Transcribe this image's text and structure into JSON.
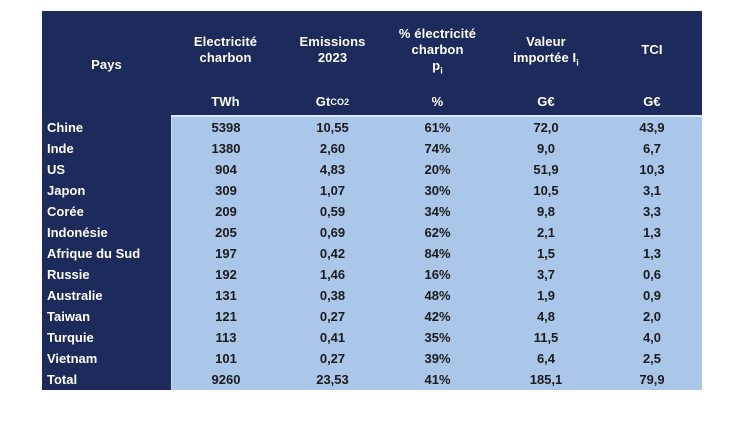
{
  "chart_data": {
    "type": "table",
    "columns": [
      {
        "id": "pays",
        "label": "Pays",
        "unit": ""
      },
      {
        "id": "electricite-charbon",
        "label": "Electricité\ncharbon",
        "unit": "TWh"
      },
      {
        "id": "emissions-2023",
        "label": "Emissions\n2023",
        "unit": "Gt~CO2~"
      },
      {
        "id": "pct-electricite-charbon",
        "label": "% électricité\ncharbon\np~i~",
        "unit": "%"
      },
      {
        "id": "valeur-importee",
        "label": "Valeur\nimportée I~i~",
        "unit": "G€"
      },
      {
        "id": "tci",
        "label": "TCI",
        "unit": "G€"
      }
    ],
    "rows": [
      [
        "Chine",
        "5398",
        "10,55",
        "61%",
        "72,0",
        "43,9"
      ],
      [
        "Inde",
        "1380",
        "2,60",
        "74%",
        "9,0",
        "6,7"
      ],
      [
        "US",
        "904",
        "4,83",
        "20%",
        "51,9",
        "10,3"
      ],
      [
        "Japon",
        "309",
        "1,07",
        "30%",
        "10,5",
        "3,1"
      ],
      [
        "Corée",
        "209",
        "0,59",
        "34%",
        "9,8",
        "3,3"
      ],
      [
        "Indonésie",
        "205",
        "0,69",
        "62%",
        "2,1",
        "1,3"
      ],
      [
        "Afrique du Sud",
        "197",
        "0,42",
        "84%",
        "1,5",
        "1,3"
      ],
      [
        "Russie",
        "192",
        "1,46",
        "16%",
        "3,7",
        "0,6"
      ],
      [
        "Australie",
        "131",
        "0,38",
        "48%",
        "1,9",
        "0,9"
      ],
      [
        "Taiwan",
        "121",
        "0,27",
        "42%",
        "4,8",
        "2,0"
      ],
      [
        "Turquie",
        "113",
        "0,41",
        "35%",
        "11,5",
        "4,0"
      ],
      [
        "Vietnam",
        "101",
        "0,27",
        "39%",
        "6,4",
        "2,5"
      ],
      [
        "Total",
        "9260",
        "23,53",
        "41%",
        "185,1",
        "79,9"
      ]
    ],
    "colors": {
      "header_bg": "#1c2a5c",
      "row_label_bg": "#1c2a5c",
      "cell_bg": "#aac7ea",
      "header_text": "#ffffff",
      "cell_text": "#1b1b1b",
      "separator": "#dce8f8"
    },
    "layout": {
      "legend": "none",
      "grid": "off"
    }
  }
}
